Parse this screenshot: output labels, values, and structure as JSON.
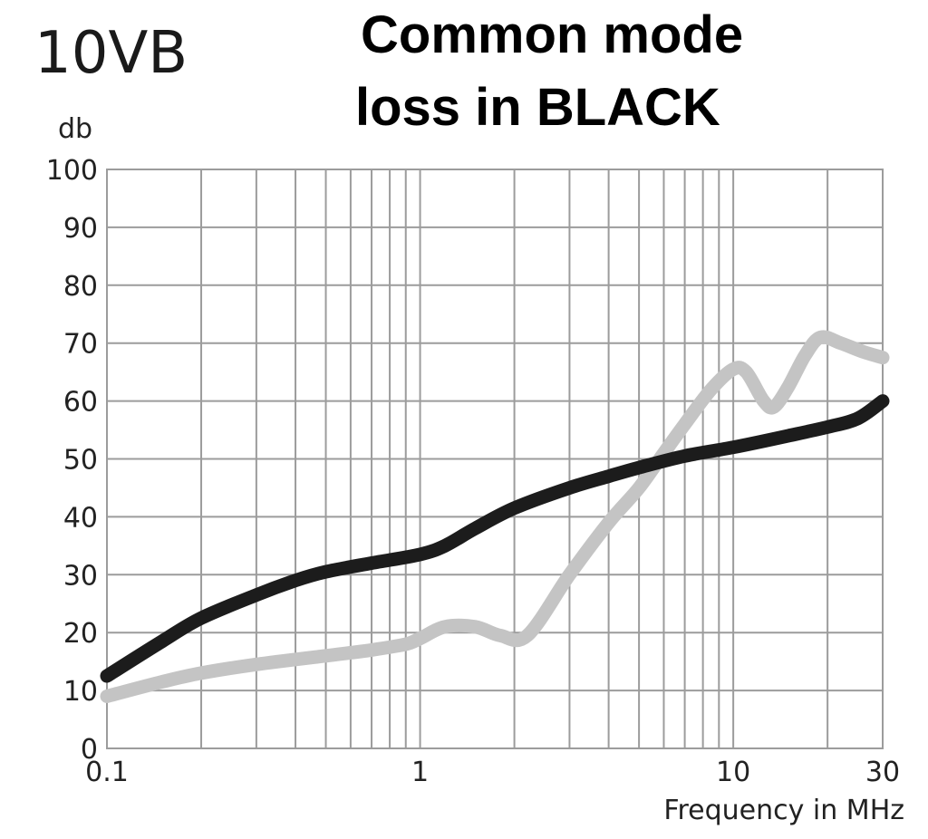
{
  "chart_data": {
    "type": "line",
    "model": "10VB",
    "title_lines": [
      "Common mode",
      "loss in BLACK"
    ],
    "title": "Common mode loss in BLACK",
    "ylabel": "db",
    "xlabel": "Frequency in MHz",
    "x_scale": "log",
    "xlim": [
      0.1,
      30
    ],
    "ylim": [
      0,
      100
    ],
    "x_ticks": [
      {
        "value": 0.1,
        "label": "0.1"
      },
      {
        "value": 1,
        "label": "1"
      },
      {
        "value": 10,
        "label": "10"
      },
      {
        "value": 30,
        "label": "30"
      }
    ],
    "y_ticks": [
      {
        "value": 0,
        "label": "0"
      },
      {
        "value": 10,
        "label": "10"
      },
      {
        "value": 20,
        "label": "20"
      },
      {
        "value": 30,
        "label": "30"
      },
      {
        "value": 40,
        "label": "40"
      },
      {
        "value": 50,
        "label": "50"
      },
      {
        "value": 60,
        "label": "60"
      },
      {
        "value": 70,
        "label": "70"
      },
      {
        "value": 80,
        "label": "80"
      },
      {
        "value": 90,
        "label": "90"
      },
      {
        "value": 100,
        "label": "100"
      }
    ],
    "grid": true,
    "legend": "none",
    "series": [
      {
        "color": "#1c1c1c",
        "points": [
          [
            0.1,
            12.5
          ],
          [
            0.15,
            18.5
          ],
          [
            0.2,
            22.5
          ],
          [
            0.3,
            26.5
          ],
          [
            0.4,
            29
          ],
          [
            0.5,
            30.5
          ],
          [
            0.7,
            32
          ],
          [
            1.0,
            33.5
          ],
          [
            1.2,
            35
          ],
          [
            1.5,
            38
          ],
          [
            2.0,
            41.5
          ],
          [
            3.0,
            45
          ],
          [
            4.0,
            47
          ],
          [
            5.0,
            48.5
          ],
          [
            7.0,
            50.5
          ],
          [
            10,
            52
          ],
          [
            15,
            54
          ],
          [
            20,
            55.5
          ],
          [
            25,
            57
          ],
          [
            30,
            60
          ]
        ]
      },
      {
        "color": "#c4c4c4",
        "points": [
          [
            0.1,
            9
          ],
          [
            0.15,
            11.5
          ],
          [
            0.2,
            13
          ],
          [
            0.3,
            14.5
          ],
          [
            0.5,
            16
          ],
          [
            0.7,
            17
          ],
          [
            0.9,
            18
          ],
          [
            1.0,
            19
          ],
          [
            1.2,
            21
          ],
          [
            1.5,
            21
          ],
          [
            1.8,
            19.5
          ],
          [
            2.2,
            19.5
          ],
          [
            3.0,
            30
          ],
          [
            4.0,
            39
          ],
          [
            5.0,
            45
          ],
          [
            6.0,
            51
          ],
          [
            7.0,
            56
          ],
          [
            8.5,
            62
          ],
          [
            10,
            65.5
          ],
          [
            11,
            65
          ],
          [
            12.5,
            60
          ],
          [
            13.5,
            59
          ],
          [
            15,
            62.5
          ],
          [
            17,
            68
          ],
          [
            19,
            71
          ],
          [
            22,
            70
          ],
          [
            26,
            68.5
          ],
          [
            30,
            67.5
          ]
        ]
      }
    ]
  }
}
